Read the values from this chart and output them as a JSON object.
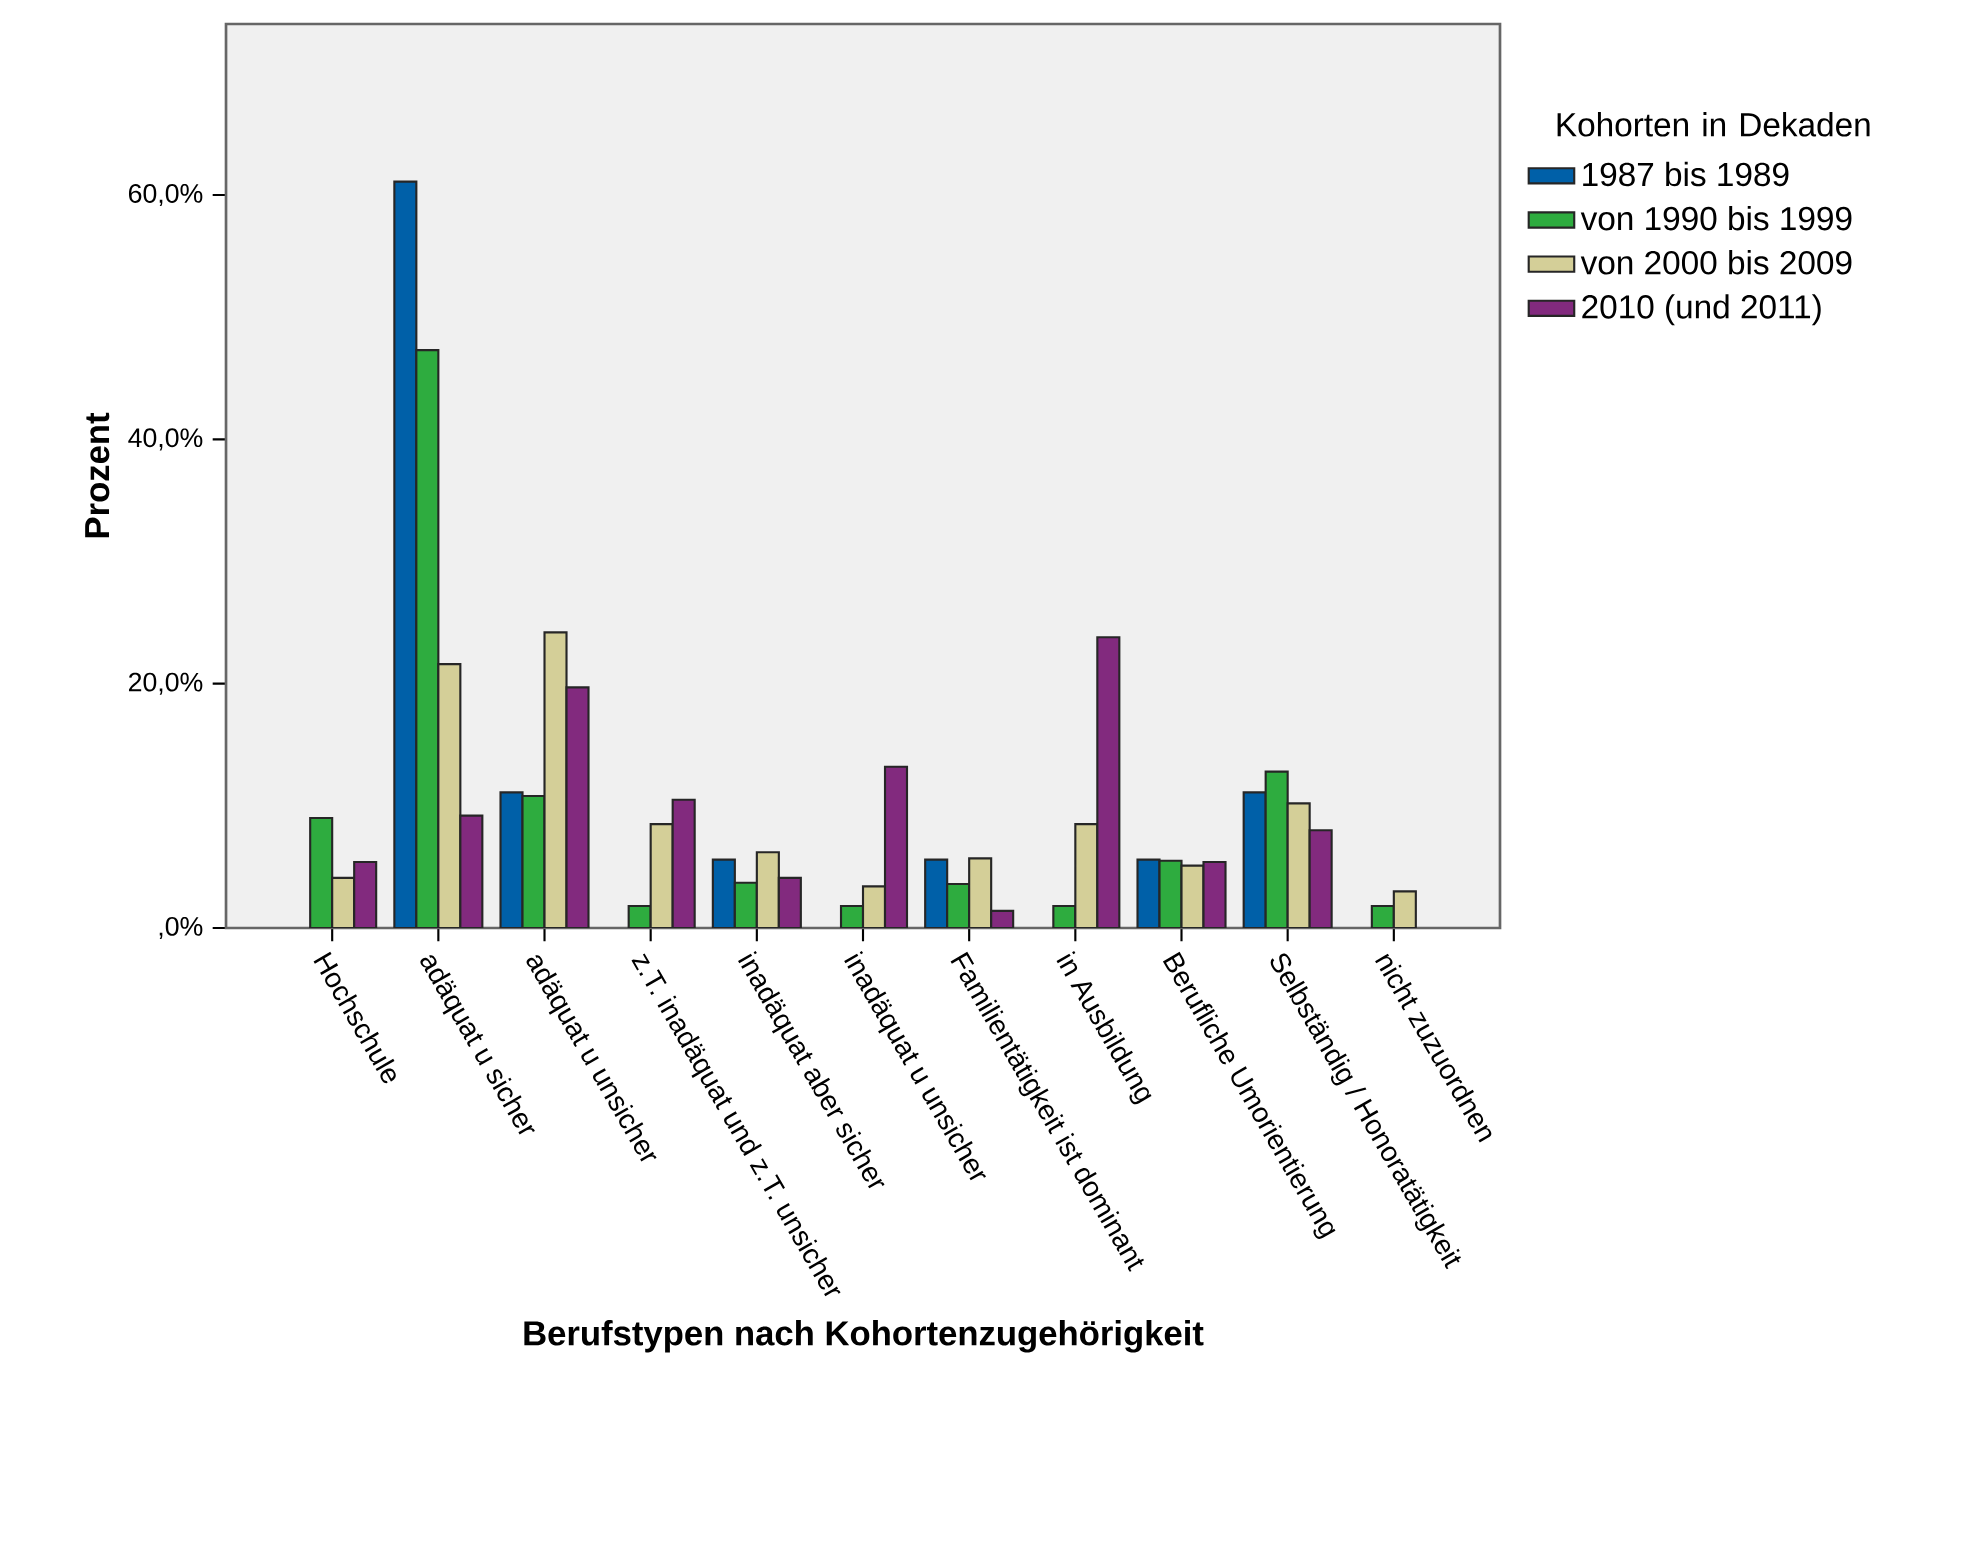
{
  "chart_data": {
    "type": "bar",
    "xlabel": "Berufstypen nach Kohortenzugehörigkeit",
    "ylabel": "Prozent",
    "legend_title": "Kohorten in Dekaden",
    "categories": [
      "Hochschule",
      "adäquat u sicher",
      "adäquat u unsicher",
      "z.T. inadäquat und z.T. unsicher",
      "inadäquat aber sicher",
      "inadäquat u unsicher",
      "Familientätigkeit ist dominant",
      "in Ausbildung",
      "Berufliche Umorientierung",
      "Selbständig / Honoratätigkeit",
      "nicht zuzuordnen"
    ],
    "series": [
      {
        "name": "1987 bis 1989",
        "color": "#0060a8",
        "values": [
          null,
          61.1,
          11.1,
          null,
          5.6,
          null,
          5.6,
          null,
          5.6,
          11.1,
          null
        ]
      },
      {
        "name": "von 1990 bis 1999",
        "color": "#2eac3f",
        "values": [
          9.0,
          47.3,
          10.8,
          1.8,
          3.7,
          1.8,
          3.6,
          1.8,
          5.5,
          12.8,
          1.8
        ]
      },
      {
        "name": "von 2000 bis 2009",
        "color": "#d4cf98",
        "values": [
          4.1,
          21.6,
          24.2,
          8.5,
          6.2,
          3.4,
          5.7,
          8.5,
          5.1,
          10.2,
          3.0
        ]
      },
      {
        "name": "2010 (und 2011)",
        "color": "#822a7e",
        "values": [
          5.4,
          9.2,
          19.7,
          10.5,
          4.1,
          13.2,
          1.4,
          23.8,
          5.4,
          8.0,
          null
        ]
      }
    ],
    "ylim": [
      0,
      74
    ],
    "yticks": [
      {
        "value": 0,
        "label": ",0%"
      },
      {
        "value": 20,
        "label": "20,0%"
      },
      {
        "value": 40,
        "label": "40,0%"
      },
      {
        "value": 60,
        "label": "60,0%"
      }
    ],
    "legend": "top right"
  }
}
